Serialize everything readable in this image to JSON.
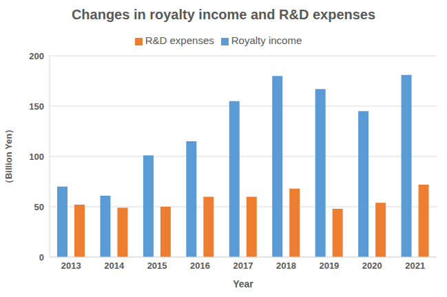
{
  "chart_data": {
    "type": "bar",
    "title": "Changes in royalty income and R&D expenses",
    "x_label": "Year",
    "y_label": "（Billion Yen）",
    "categories": [
      "2013",
      "2014",
      "2015",
      "2016",
      "2017",
      "2018",
      "2019",
      "2020",
      "2021"
    ],
    "series": [
      {
        "name": "Royalty income",
        "color": "#5B9BD5",
        "values": [
          70,
          61,
          101,
          115,
          155,
          180,
          167,
          145,
          181
        ]
      },
      {
        "name": "R&D expenses",
        "color": "#ED7D31",
        "values": [
          52,
          49,
          50,
          60,
          60,
          68,
          48,
          54,
          72
        ]
      }
    ],
    "ylim": [
      0,
      200
    ],
    "yticks": [
      0,
      50,
      100,
      150,
      200
    ],
    "grid": true,
    "legend": "top"
  }
}
